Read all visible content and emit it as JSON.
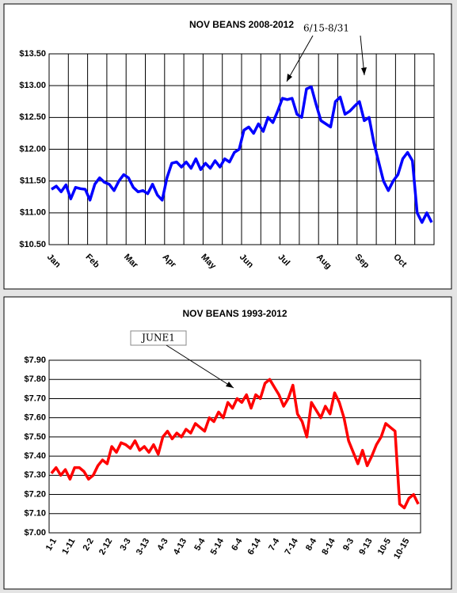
{
  "chart_data": [
    {
      "type": "line",
      "title": "NOV BEANS 2008-2012",
      "categories": [
        "Jan",
        null,
        null,
        null,
        null,
        null,
        null,
        null,
        "Feb",
        null,
        null,
        null,
        null,
        null,
        null,
        null,
        "Mar",
        null,
        null,
        null,
        null,
        null,
        null,
        null,
        "Apr",
        null,
        null,
        null,
        null,
        null,
        null,
        null,
        "May",
        null,
        null,
        null,
        null,
        null,
        null,
        null,
        "Jun",
        null,
        null,
        null,
        null,
        null,
        null,
        null,
        "Jul",
        null,
        null,
        null,
        null,
        null,
        null,
        null,
        "Aug",
        null,
        null,
        null,
        null,
        null,
        null,
        null,
        "Sep",
        null,
        null,
        null,
        null,
        null,
        null,
        null,
        "Oct",
        null,
        null,
        null,
        null,
        null,
        null,
        null
      ],
      "series": [
        {
          "color": "#0000ff",
          "values": [
            11.37,
            11.42,
            11.33,
            11.44,
            11.22,
            11.4,
            11.38,
            11.37,
            11.2,
            11.45,
            11.55,
            11.48,
            11.45,
            11.35,
            11.5,
            11.6,
            11.55,
            11.4,
            11.33,
            11.35,
            11.3,
            11.45,
            11.28,
            11.2,
            11.55,
            11.78,
            11.8,
            11.72,
            11.8,
            11.7,
            11.85,
            11.68,
            11.78,
            11.7,
            11.82,
            11.72,
            11.85,
            11.8,
            11.95,
            12.0,
            12.3,
            12.35,
            12.25,
            12.4,
            12.28,
            12.5,
            12.42,
            12.6,
            12.8,
            12.78,
            12.8,
            12.55,
            12.5,
            12.95,
            12.98,
            12.7,
            12.45,
            12.4,
            12.35,
            12.75,
            12.82,
            12.55,
            12.6,
            12.68,
            12.75,
            12.45,
            12.5,
            12.1,
            11.8,
            11.5,
            11.35,
            11.5,
            11.6,
            11.85,
            11.95,
            11.82,
            11.0,
            10.85,
            11.0,
            10.85
          ]
        }
      ],
      "ylim": [
        10.5,
        13.5
      ],
      "yticks": [
        {
          "value": 10.5,
          "label": "$10.50"
        },
        {
          "value": 11,
          "label": "$11.00"
        },
        {
          "value": 11.5,
          "label": "$11.50"
        },
        {
          "value": 12,
          "label": "$12.00"
        },
        {
          "value": 12.5,
          "label": "$12.50"
        },
        {
          "value": 13,
          "label": "$13.00"
        },
        {
          "value": 13.5,
          "label": "$13.50"
        }
      ],
      "grid": true,
      "vgrid": true,
      "annotations": [
        {
          "text": "6/15-8/31"
        }
      ]
    },
    {
      "type": "line",
      "title": "NOV BEANS 1993-2012",
      "categories": [
        "1-1",
        null,
        null,
        null,
        "1-11",
        null,
        null,
        null,
        "2-2",
        null,
        null,
        null,
        "2-12",
        null,
        null,
        null,
        "3-3",
        null,
        null,
        null,
        "3-13",
        null,
        null,
        null,
        "4-3",
        null,
        null,
        null,
        "4-13",
        null,
        null,
        null,
        "5-4",
        null,
        null,
        null,
        "5-14",
        null,
        null,
        null,
        "6-4",
        null,
        null,
        null,
        "6-14",
        null,
        null,
        null,
        "7-4",
        null,
        null,
        null,
        "7-14",
        null,
        null,
        null,
        "8-4",
        null,
        null,
        null,
        "8-14",
        null,
        null,
        null,
        "9-3",
        null,
        null,
        null,
        "9-13",
        null,
        null,
        null,
        "10-5",
        null,
        null,
        null,
        "10-15",
        null,
        null,
        null
      ],
      "series": [
        {
          "color": "#ff0000",
          "values": [
            7.31,
            7.34,
            7.3,
            7.33,
            7.28,
            7.34,
            7.34,
            7.32,
            7.28,
            7.3,
            7.35,
            7.38,
            7.36,
            7.45,
            7.42,
            7.47,
            7.46,
            7.44,
            7.48,
            7.43,
            7.45,
            7.42,
            7.46,
            7.41,
            7.5,
            7.53,
            7.49,
            7.52,
            7.5,
            7.54,
            7.52,
            7.57,
            7.55,
            7.53,
            7.6,
            7.58,
            7.63,
            7.6,
            7.68,
            7.65,
            7.7,
            7.68,
            7.72,
            7.65,
            7.72,
            7.7,
            7.78,
            7.8,
            7.76,
            7.72,
            7.66,
            7.7,
            7.77,
            7.62,
            7.58,
            7.5,
            7.68,
            7.64,
            7.6,
            7.66,
            7.62,
            7.73,
            7.68,
            7.6,
            7.48,
            7.42,
            7.36,
            7.43,
            7.35,
            7.4,
            7.46,
            7.5,
            7.57,
            7.55,
            7.53,
            7.15,
            7.13,
            7.18,
            7.2,
            7.15
          ]
        }
      ],
      "ylim": [
        7.0,
        7.9
      ],
      "yticks": [
        {
          "value": 7.0,
          "label": "$7.00"
        },
        {
          "value": 7.1,
          "label": "$7.10"
        },
        {
          "value": 7.2,
          "label": "$7.20"
        },
        {
          "value": 7.3,
          "label": "$7.30"
        },
        {
          "value": 7.4,
          "label": "$7.40"
        },
        {
          "value": 7.5,
          "label": "$7.50"
        },
        {
          "value": 7.6,
          "label": "$7.60"
        },
        {
          "value": 7.7,
          "label": "$7.70"
        },
        {
          "value": 7.8,
          "label": "$7.80"
        },
        {
          "value": 7.9,
          "label": "$7.90"
        }
      ],
      "grid": true,
      "vgrid": false,
      "annotations": [
        {
          "text": "JUNE1"
        }
      ]
    }
  ]
}
